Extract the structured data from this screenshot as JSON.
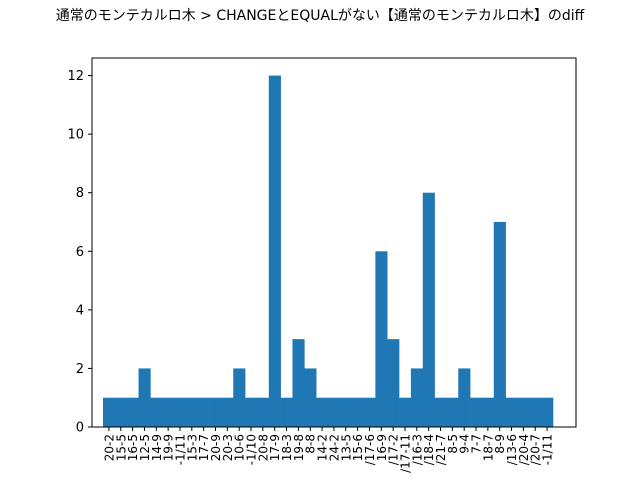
{
  "chart_data": {
    "type": "bar",
    "title": "通常のモンテカルロ木 > CHANGEとEQUALがない【通常のモンテカルロ木】のdiff",
    "categories": [
      "20-2",
      "15-5",
      "16-5",
      "12-5",
      "14-9",
      "19-9",
      "-1/11",
      "15-3",
      "17-7",
      "20-9",
      "20-3",
      "10-6",
      "-1/10",
      "20-8",
      "17-9",
      "18-3",
      "19-8",
      "8-8",
      "14-2",
      "24-2",
      "13-5",
      "15-6",
      "/17-6",
      "16-9",
      "/17-2",
      "/17-11",
      "/16-3",
      "/18-4",
      "/21-7",
      "8-5",
      "9-4",
      "7-7",
      "18-7",
      "8-9",
      "/13-6",
      "/20-4",
      "/20-7",
      "-1/11"
    ],
    "values": [
      1,
      1,
      1,
      2,
      1,
      1,
      1,
      1,
      1,
      1,
      1,
      2,
      1,
      1,
      12,
      1,
      3,
      2,
      1,
      1,
      1,
      1,
      1,
      6,
      3,
      1,
      2,
      8,
      1,
      1,
      2,
      1,
      1,
      7,
      1,
      1,
      1,
      1
    ],
    "xlabel": "",
    "ylabel": "",
    "ylim": [
      0,
      12.6
    ],
    "yticks": [
      0,
      2,
      4,
      6,
      8,
      10,
      12
    ],
    "grid": false,
    "colors": {
      "bar": "#1f77b4",
      "axis": "#000000",
      "background": "#ffffff"
    }
  }
}
